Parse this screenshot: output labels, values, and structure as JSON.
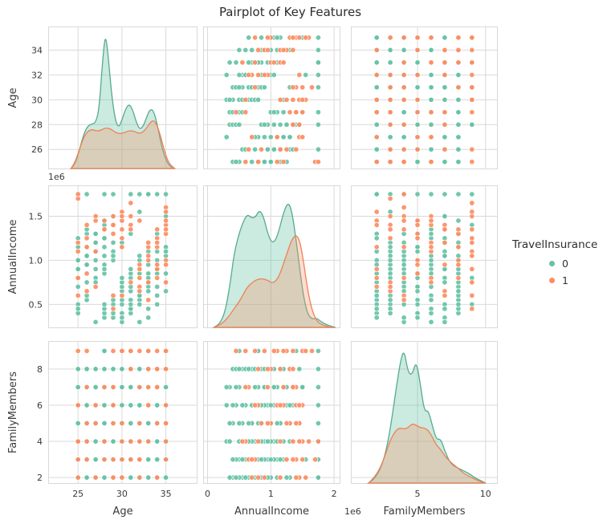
{
  "title": "Pairplot of Key Features",
  "colors": {
    "class0": "#66c2a5",
    "class1": "#fc8d62",
    "kde0_stroke": "#55ab8e",
    "kde1_stroke": "#ec8255",
    "grid": "#d9d9d9",
    "text": "#3a3a3a"
  },
  "legend": {
    "title": "TravelInsurance",
    "items": [
      {
        "label": "0",
        "color": "#66c2a5"
      },
      {
        "label": "1",
        "color": "#fc8d62"
      }
    ]
  },
  "chart_data": {
    "type": "pairplot",
    "title": "Pairplot of Key Features",
    "variables": [
      "Age",
      "AnnualIncome",
      "FamilyMembers"
    ],
    "diag_kind": "kde",
    "hue": "TravelInsurance",
    "hue_classes": [
      "0",
      "1"
    ],
    "income_scale_note": "AnnualIncome values are in units of 1e6",
    "axes": {
      "Age": {
        "label": "Age",
        "x_domain": [
          21.6,
          38.6
        ],
        "y_domain": [
          24.4,
          35.9
        ],
        "x_ticks": [
          25,
          30,
          35
        ],
        "x_ticklabels": [
          "25",
          "30",
          "35"
        ],
        "y_ticks": [
          26,
          28,
          30,
          32,
          34
        ],
        "y_ticklabels": [
          "26",
          "28",
          "30",
          "32",
          "34"
        ]
      },
      "AnnualIncome": {
        "label": "AnnualIncome",
        "x_domain": [
          -0.07,
          2.1
        ],
        "y_domain": [
          0.23,
          1.85
        ],
        "x_ticks": [
          0,
          1,
          2
        ],
        "x_ticklabels": [
          "0",
          "1",
          "2"
        ],
        "y_ticks": [
          0.5,
          1.0,
          1.5
        ],
        "y_ticklabels": [
          "0.5",
          "1.0",
          "1.5"
        ],
        "x_offset_label": "1e6",
        "y_offset_label": "1e6"
      },
      "FamilyMembers": {
        "label": "FamilyMembers",
        "x_domain": [
          0.1,
          10.9
        ],
        "y_domain": [
          1.65,
          9.55
        ],
        "x_ticks": [
          5,
          10
        ],
        "x_ticklabels": [
          "5",
          "10"
        ],
        "y_ticks": [
          2,
          4,
          6,
          8
        ],
        "y_ticklabels": [
          "2",
          "4",
          "6",
          "8"
        ]
      }
    },
    "records_format": [
      "Age",
      "AnnualIncome_1e6",
      "FamilyMembers",
      "TravelInsurance"
    ],
    "records": [
      [
        25,
        0.4,
        2,
        0
      ],
      [
        26,
        0.55,
        2,
        0
      ],
      [
        27,
        0.7,
        2,
        1
      ],
      [
        28,
        0.85,
        2,
        0
      ],
      [
        29,
        1.0,
        2,
        0
      ],
      [
        30,
        1.15,
        2,
        1
      ],
      [
        31,
        1.3,
        2,
        0
      ],
      [
        32,
        1.45,
        2,
        1
      ],
      [
        33,
        0.35,
        2,
        0
      ],
      [
        34,
        0.5,
        2,
        0
      ],
      [
        35,
        0.65,
        2,
        0
      ],
      [
        25,
        0.8,
        2,
        1
      ],
      [
        26,
        0.95,
        2,
        0
      ],
      [
        27,
        1.1,
        2,
        0
      ],
      [
        28,
        1.25,
        2,
        0
      ],
      [
        29,
        1.4,
        2,
        1
      ],
      [
        30,
        1.55,
        2,
        1
      ],
      [
        31,
        0.45,
        2,
        0
      ],
      [
        32,
        0.6,
        2,
        0
      ],
      [
        33,
        0.75,
        2,
        0
      ],
      [
        34,
        0.9,
        2,
        1
      ],
      [
        35,
        1.75,
        2,
        0
      ],
      [
        25,
        0.5,
        3,
        0
      ],
      [
        26,
        0.65,
        3,
        1
      ],
      [
        27,
        0.8,
        3,
        0
      ],
      [
        28,
        0.95,
        3,
        0
      ],
      [
        29,
        1.1,
        3,
        0
      ],
      [
        30,
        1.25,
        3,
        1
      ],
      [
        31,
        1.4,
        3,
        1
      ],
      [
        32,
        1.55,
        3,
        0
      ],
      [
        33,
        0.45,
        3,
        0
      ],
      [
        34,
        0.6,
        3,
        0
      ],
      [
        35,
        0.75,
        3,
        1
      ],
      [
        25,
        0.9,
        3,
        0
      ],
      [
        26,
        1.05,
        3,
        0
      ],
      [
        27,
        1.2,
        3,
        0
      ],
      [
        28,
        1.35,
        3,
        1
      ],
      [
        29,
        1.5,
        3,
        1
      ],
      [
        30,
        0.4,
        3,
        0
      ],
      [
        31,
        0.55,
        3,
        0
      ],
      [
        32,
        0.7,
        3,
        1
      ],
      [
        33,
        0.85,
        3,
        0
      ],
      [
        34,
        1.0,
        3,
        0
      ],
      [
        35,
        1.15,
        3,
        0
      ],
      [
        25,
        0.6,
        4,
        1
      ],
      [
        26,
        0.75,
        4,
        0
      ],
      [
        27,
        0.9,
        4,
        0
      ],
      [
        28,
        1.05,
        4,
        0
      ],
      [
        29,
        1.2,
        4,
        0
      ],
      [
        30,
        1.35,
        4,
        1
      ],
      [
        31,
        1.5,
        4,
        1
      ],
      [
        32,
        0.3,
        4,
        0
      ],
      [
        33,
        0.55,
        4,
        1
      ],
      [
        34,
        0.7,
        4,
        0
      ],
      [
        35,
        0.85,
        4,
        0
      ],
      [
        25,
        1.0,
        4,
        0
      ],
      [
        26,
        1.15,
        4,
        1
      ],
      [
        27,
        1.3,
        4,
        0
      ],
      [
        28,
        1.45,
        4,
        1
      ],
      [
        29,
        0.35,
        4,
        0
      ],
      [
        30,
        0.5,
        4,
        0
      ],
      [
        31,
        0.65,
        4,
        0
      ],
      [
        32,
        0.8,
        4,
        1
      ],
      [
        33,
        0.95,
        4,
        0
      ],
      [
        34,
        1.1,
        4,
        0
      ],
      [
        35,
        1.6,
        4,
        1
      ],
      [
        25,
        0.7,
        5,
        0
      ],
      [
        26,
        0.85,
        5,
        1
      ],
      [
        27,
        1.0,
        5,
        0
      ],
      [
        28,
        1.15,
        5,
        0
      ],
      [
        29,
        1.3,
        5,
        1
      ],
      [
        30,
        1.45,
        5,
        1
      ],
      [
        31,
        0.4,
        5,
        0
      ],
      [
        32,
        0.55,
        5,
        0
      ],
      [
        33,
        0.7,
        5,
        0
      ],
      [
        34,
        0.85,
        5,
        0
      ],
      [
        35,
        1.0,
        5,
        1
      ],
      [
        25,
        1.15,
        5,
        0
      ],
      [
        26,
        1.3,
        5,
        0
      ],
      [
        27,
        1.45,
        5,
        1
      ],
      [
        28,
        0.35,
        5,
        0
      ],
      [
        29,
        0.5,
        5,
        0
      ],
      [
        30,
        0.65,
        5,
        0
      ],
      [
        31,
        0.8,
        5,
        0
      ],
      [
        32,
        0.95,
        5,
        1
      ],
      [
        33,
        1.1,
        5,
        0
      ],
      [
        34,
        1.25,
        5,
        1
      ],
      [
        35,
        1.4,
        5,
        1
      ],
      [
        25,
        0.8,
        6,
        1
      ],
      [
        26,
        0.95,
        6,
        0
      ],
      [
        27,
        1.1,
        6,
        1
      ],
      [
        28,
        1.25,
        6,
        0
      ],
      [
        29,
        1.4,
        6,
        1
      ],
      [
        30,
        0.3,
        6,
        0
      ],
      [
        31,
        0.45,
        6,
        0
      ],
      [
        32,
        0.6,
        6,
        0
      ],
      [
        33,
        0.75,
        6,
        1
      ],
      [
        34,
        0.9,
        6,
        0
      ],
      [
        35,
        1.05,
        6,
        0
      ],
      [
        25,
        1.2,
        6,
        1
      ],
      [
        26,
        1.35,
        6,
        0
      ],
      [
        27,
        1.5,
        6,
        1
      ],
      [
        28,
        0.4,
        6,
        0
      ],
      [
        29,
        0.55,
        6,
        0
      ],
      [
        30,
        0.7,
        6,
        0
      ],
      [
        31,
        0.85,
        6,
        0
      ],
      [
        32,
        1.0,
        6,
        0
      ],
      [
        33,
        1.15,
        6,
        1
      ],
      [
        34,
        1.3,
        6,
        0
      ],
      [
        35,
        1.45,
        6,
        1
      ],
      [
        25,
        0.9,
        7,
        0
      ],
      [
        26,
        1.05,
        7,
        0
      ],
      [
        27,
        1.2,
        7,
        0
      ],
      [
        28,
        1.35,
        7,
        1
      ],
      [
        29,
        1.5,
        7,
        0
      ],
      [
        30,
        0.35,
        7,
        0
      ],
      [
        31,
        0.5,
        7,
        0
      ],
      [
        32,
        0.65,
        7,
        1
      ],
      [
        33,
        0.8,
        7,
        0
      ],
      [
        34,
        0.95,
        7,
        1
      ],
      [
        35,
        1.1,
        7,
        0
      ],
      [
        25,
        1.25,
        7,
        0
      ],
      [
        26,
        1.4,
        7,
        1
      ],
      [
        27,
        0.3,
        7,
        0
      ],
      [
        28,
        0.45,
        7,
        0
      ],
      [
        29,
        0.6,
        7,
        1
      ],
      [
        30,
        0.75,
        7,
        0
      ],
      [
        31,
        0.9,
        7,
        0
      ],
      [
        32,
        1.05,
        7,
        0
      ],
      [
        33,
        1.2,
        7,
        1
      ],
      [
        34,
        1.35,
        7,
        1
      ],
      [
        35,
        1.5,
        7,
        0
      ],
      [
        25,
        1.0,
        8,
        0
      ],
      [
        26,
        1.15,
        8,
        0
      ],
      [
        27,
        1.3,
        8,
        0
      ],
      [
        28,
        1.45,
        8,
        0
      ],
      [
        29,
        0.4,
        8,
        0
      ],
      [
        30,
        0.55,
        8,
        0
      ],
      [
        31,
        0.7,
        8,
        0
      ],
      [
        32,
        0.85,
        8,
        0
      ],
      [
        33,
        1.0,
        8,
        1
      ],
      [
        34,
        1.15,
        8,
        1
      ],
      [
        35,
        1.3,
        8,
        1
      ],
      [
        25,
        0.45,
        8,
        0
      ],
      [
        26,
        0.6,
        8,
        0
      ],
      [
        27,
        0.75,
        8,
        0
      ],
      [
        28,
        0.9,
        8,
        0
      ],
      [
        29,
        1.05,
        8,
        0
      ],
      [
        30,
        1.2,
        8,
        0
      ],
      [
        31,
        1.35,
        8,
        1
      ],
      [
        32,
        0.5,
        8,
        0
      ],
      [
        33,
        0.65,
        8,
        0
      ],
      [
        34,
        0.8,
        8,
        1
      ],
      [
        35,
        0.95,
        8,
        1
      ],
      [
        25,
        1.1,
        9,
        1
      ],
      [
        26,
        1.25,
        9,
        1
      ],
      [
        28,
        1.4,
        9,
        0
      ],
      [
        29,
        0.45,
        9,
        1
      ],
      [
        30,
        0.6,
        9,
        1
      ],
      [
        31,
        0.75,
        9,
        1
      ],
      [
        32,
        0.9,
        9,
        1
      ],
      [
        33,
        1.05,
        9,
        1
      ],
      [
        34,
        1.2,
        9,
        1
      ],
      [
        35,
        1.35,
        9,
        1
      ],
      [
        30,
        1.5,
        9,
        1
      ],
      [
        31,
        1.65,
        9,
        1
      ],
      [
        33,
        1.75,
        9,
        0
      ],
      [
        28,
        0.5,
        9,
        0
      ],
      [
        30,
        0.8,
        9,
        0
      ],
      [
        35,
        1.55,
        9,
        1
      ],
      [
        26,
        1.75,
        5,
        0
      ],
      [
        28,
        1.75,
        4,
        0
      ],
      [
        29,
        1.75,
        6,
        0
      ],
      [
        31,
        1.75,
        3,
        0
      ],
      [
        32,
        1.75,
        7,
        0
      ],
      [
        33,
        1.75,
        8,
        0
      ],
      [
        34,
        1.75,
        2,
        0
      ],
      [
        25,
        1.7,
        3,
        1
      ],
      [
        25,
        1.75,
        4,
        1
      ]
    ],
    "kde": {
      "Age": {
        "x": [
          24.2,
          24.6,
          25.0,
          25.4,
          25.8,
          26.2,
          26.6,
          27.0,
          27.4,
          27.8,
          28.1,
          28.4,
          28.8,
          29.2,
          29.6,
          30.0,
          30.4,
          30.8,
          31.2,
          31.6,
          32.0,
          32.4,
          32.8,
          33.2,
          33.6,
          34.0,
          34.4,
          34.8,
          35.2,
          35.6,
          36.0
        ],
        "h0": [
          0,
          0.03,
          0.1,
          0.2,
          0.28,
          0.32,
          0.33,
          0.34,
          0.44,
          0.8,
          1.0,
          0.86,
          0.56,
          0.37,
          0.3,
          0.36,
          0.44,
          0.48,
          0.44,
          0.35,
          0.29,
          0.31,
          0.38,
          0.44,
          0.43,
          0.33,
          0.2,
          0.1,
          0.04,
          0.01,
          0
        ],
        "h1": [
          0,
          0.04,
          0.11,
          0.19,
          0.25,
          0.28,
          0.29,
          0.28,
          0.28,
          0.29,
          0.3,
          0.3,
          0.29,
          0.27,
          0.26,
          0.26,
          0.27,
          0.28,
          0.28,
          0.27,
          0.26,
          0.27,
          0.3,
          0.34,
          0.36,
          0.32,
          0.24,
          0.14,
          0.06,
          0.02,
          0
        ]
      },
      "AnnualIncome": {
        "x": [
          0.1,
          0.2,
          0.28,
          0.35,
          0.42,
          0.5,
          0.57,
          0.63,
          0.7,
          0.76,
          0.82,
          0.88,
          0.95,
          1.01,
          1.07,
          1.13,
          1.2,
          1.27,
          1.33,
          1.4,
          1.46,
          1.52,
          1.58,
          1.65,
          1.72,
          1.8,
          1.88,
          1.95,
          2.02
        ],
        "h0": [
          0,
          0.03,
          0.12,
          0.3,
          0.55,
          0.7,
          0.79,
          0.84,
          0.81,
          0.82,
          0.87,
          0.83,
          0.7,
          0.63,
          0.64,
          0.72,
          0.85,
          0.93,
          0.87,
          0.65,
          0.42,
          0.22,
          0.1,
          0.06,
          0.07,
          0.04,
          0.02,
          0.01,
          0
        ],
        "h1": [
          0,
          0.02,
          0.05,
          0.09,
          0.14,
          0.19,
          0.25,
          0.3,
          0.33,
          0.35,
          0.36,
          0.36,
          0.35,
          0.33,
          0.34,
          0.38,
          0.47,
          0.57,
          0.65,
          0.69,
          0.64,
          0.48,
          0.28,
          0.13,
          0.05,
          0.02,
          0.01,
          0,
          0
        ]
      },
      "FamilyMembers": {
        "x": [
          1.4,
          1.8,
          2.2,
          2.6,
          3.0,
          3.4,
          3.7,
          4.0,
          4.3,
          4.6,
          4.9,
          5.2,
          5.5,
          5.8,
          6.1,
          6.4,
          6.7,
          7.0,
          7.3,
          7.6,
          8.0,
          8.4,
          8.8,
          9.2,
          9.6,
          10.0
        ],
        "h0": [
          0,
          0.03,
          0.09,
          0.2,
          0.4,
          0.68,
          0.88,
          1.0,
          0.82,
          0.8,
          0.91,
          0.74,
          0.53,
          0.54,
          0.42,
          0.32,
          0.33,
          0.24,
          0.17,
          0.13,
          0.11,
          0.09,
          0.07,
          0.04,
          0.02,
          0
        ],
        "h1": [
          0,
          0.04,
          0.1,
          0.2,
          0.32,
          0.39,
          0.41,
          0.4,
          0.41,
          0.44,
          0.43,
          0.41,
          0.41,
          0.39,
          0.34,
          0.28,
          0.25,
          0.2,
          0.17,
          0.14,
          0.11,
          0.07,
          0.05,
          0.03,
          0.01,
          0
        ]
      }
    }
  }
}
